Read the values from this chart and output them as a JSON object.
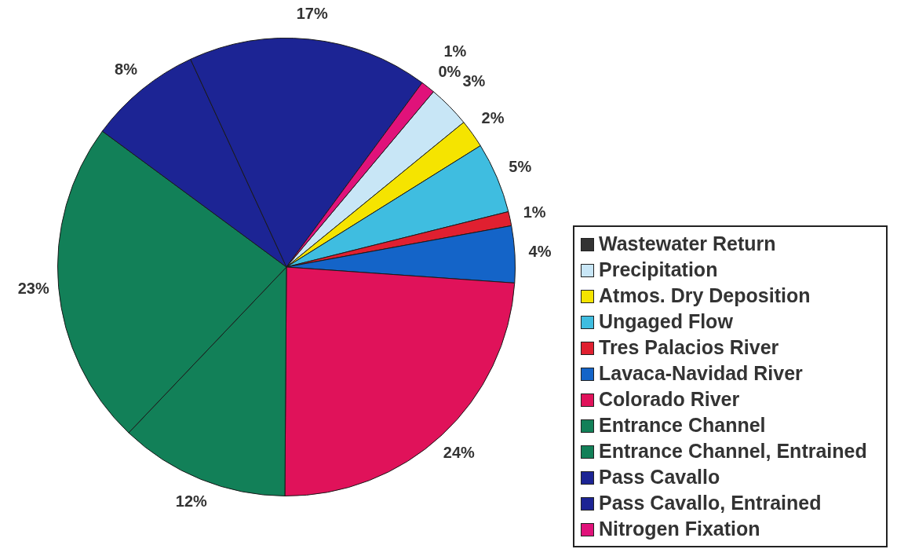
{
  "chart_data": {
    "type": "pie",
    "categories": [
      "Wastewater Return",
      "Precipitation",
      "Atmos. Dry Deposition",
      "Ungaged Flow",
      "Tres Palacios River",
      "Lavaca-Navidad River",
      "Colorado River",
      "Entrance Channel",
      "Entrance Channel, Entrained",
      "Pass Cavallo",
      "Pass Cavallo, Entrained",
      "Nitrogen Fixation"
    ],
    "values": [
      0,
      3,
      2,
      5,
      1,
      4,
      24,
      12,
      23,
      8,
      17,
      1
    ],
    "value_labels": [
      "0%",
      "3%",
      "2%",
      "5%",
      "1%",
      "4%",
      "24%",
      "12%",
      "23%",
      "8%",
      "17%",
      "1%"
    ],
    "colors": [
      "#333333",
      "#c8e6f6",
      "#f5e400",
      "#3fbde0",
      "#e02030",
      "#1464c8",
      "#e0125a",
      "#128058",
      "#128058",
      "#1c2494",
      "#1c2494",
      "#e0127a"
    ],
    "legend": "right"
  }
}
